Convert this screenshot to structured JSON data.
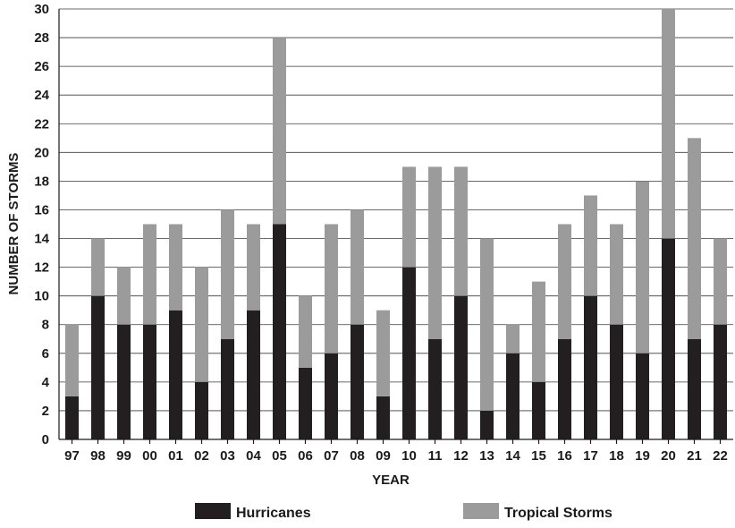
{
  "chart_data": {
    "type": "bar",
    "stacked": true,
    "categories": [
      "97",
      "98",
      "99",
      "00",
      "01",
      "02",
      "03",
      "04",
      "05",
      "06",
      "07",
      "08",
      "09",
      "10",
      "11",
      "12",
      "13",
      "14",
      "15",
      "16",
      "17",
      "18",
      "19",
      "20",
      "21",
      "22"
    ],
    "series": [
      {
        "name": "Hurricanes",
        "color": "#231f20",
        "values": [
          3,
          10,
          8,
          8,
          9,
          4,
          7,
          9,
          15,
          5,
          6,
          8,
          3,
          12,
          7,
          10,
          2,
          6,
          4,
          7,
          10,
          8,
          6,
          14,
          7,
          8
        ]
      },
      {
        "name": "Tropical Storms",
        "color": "#9b9b9b",
        "values": [
          5,
          4,
          4,
          7,
          6,
          8,
          9,
          6,
          13,
          5,
          9,
          8,
          6,
          7,
          12,
          9,
          12,
          2,
          7,
          8,
          7,
          7,
          12,
          16,
          14,
          6
        ]
      }
    ],
    "xlabel": "YEAR",
    "ylabel": "NUMBER OF STORMS",
    "ylim": [
      0,
      30
    ],
    "yticks": [
      0,
      2,
      4,
      6,
      8,
      10,
      12,
      14,
      16,
      18,
      20,
      22,
      24,
      26,
      28,
      30
    ],
    "grid": true,
    "legend_position": "bottom"
  }
}
